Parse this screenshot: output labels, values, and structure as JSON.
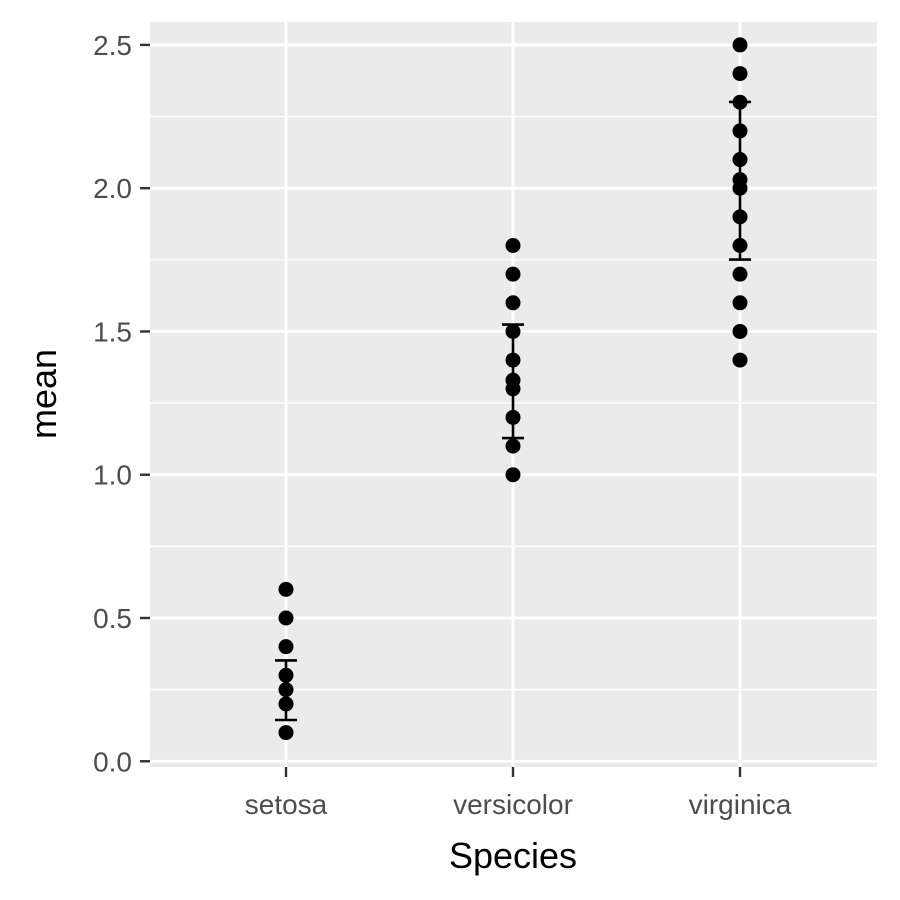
{
  "chart_data": {
    "type": "scatter",
    "title": "",
    "xlabel": "Species",
    "ylabel": "mean",
    "categories": [
      "setosa",
      "versicolor",
      "virginica"
    ],
    "ylim": [
      -0.02,
      2.58
    ],
    "yticks": [
      "0.0",
      "0.5",
      "1.0",
      "1.5",
      "2.0",
      "2.5"
    ],
    "grid": true,
    "legend": "none",
    "colors": {
      "panel": "#ebebeb",
      "grid": "#ffffff",
      "points": "#000000"
    },
    "points": [
      {
        "category": "setosa",
        "values": [
          0.1,
          0.2,
          0.25,
          0.3,
          0.4,
          0.5,
          0.6
        ]
      },
      {
        "category": "versicolor",
        "values": [
          1.0,
          1.1,
          1.2,
          1.3,
          1.33,
          1.4,
          1.5,
          1.6,
          1.7,
          1.8
        ]
      },
      {
        "category": "virginica",
        "values": [
          1.4,
          1.5,
          1.6,
          1.7,
          1.8,
          1.9,
          2.0,
          2.03,
          2.1,
          2.2,
          2.3,
          2.4,
          2.5
        ]
      }
    ],
    "error_bars": [
      {
        "category": "setosa",
        "low": 0.144,
        "high": 0.352
      },
      {
        "category": "versicolor",
        "low": 1.128,
        "high": 1.524
      },
      {
        "category": "virginica",
        "low": 1.751,
        "high": 2.301
      }
    ]
  }
}
